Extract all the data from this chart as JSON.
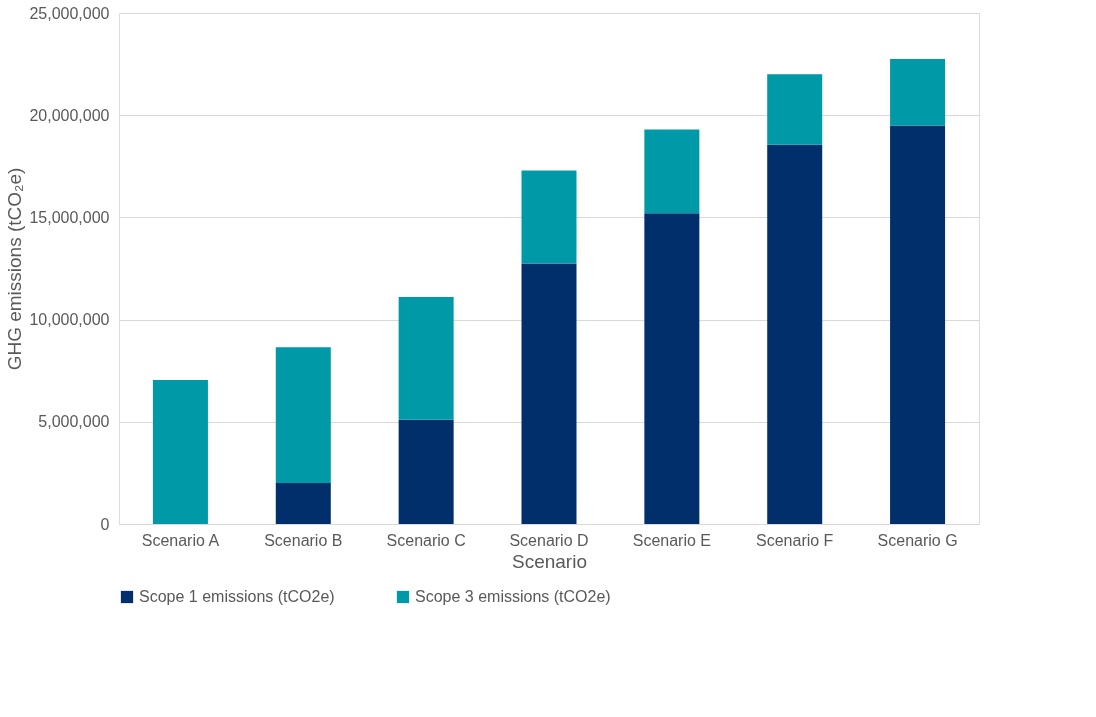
{
  "chart_data": {
    "type": "bar",
    "stacked": true,
    "xlabel": "Scenario",
    "ylabel": "GHG emissions (tCO₂e)",
    "categories": [
      "Scenario A",
      "Scenario B",
      "Scenario C",
      "Scenario D",
      "Scenario E",
      "Scenario F",
      "Scenario G"
    ],
    "series": [
      {
        "name": "Scope 1 emissions (tCO2e)",
        "color": "#002f6c",
        "values": [
          0,
          2000000,
          5100000,
          12750000,
          15200000,
          18550000,
          19500000
        ]
      },
      {
        "name": "Scope 3 emissions (tCO2e)",
        "color": "#0099a8",
        "values": [
          7050000,
          6650000,
          6000000,
          4550000,
          4100000,
          3450000,
          3250000
        ]
      }
    ],
    "ylim": [
      0,
      25000000
    ],
    "yticks": [
      0,
      {
        "value": 5000000,
        "label": "5,000,000"
      },
      {
        "value": 10000000,
        "label": "10,000,000"
      },
      {
        "value": 15000000,
        "label": "15,000,000"
      },
      {
        "value": 20000000,
        "label": "20,000,000"
      },
      {
        "value": 25000000,
        "label": "25,000,000"
      }
    ],
    "grid": "y",
    "legend": "bottom"
  }
}
